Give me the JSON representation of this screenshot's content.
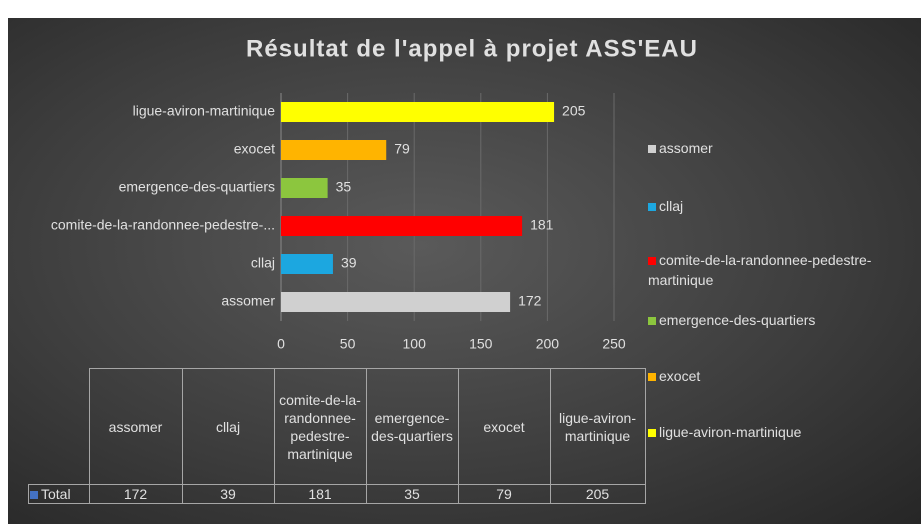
{
  "chart_data": {
    "type": "bar",
    "orientation": "horizontal",
    "title": "Résultat de l'appel à projet ASS'EAU",
    "categories": [
      "assomer",
      "cllaj",
      "comite-de-la-randonnee-pedestre-martinique",
      "emergence-des-quartiers",
      "exocet",
      "ligue-aviron-martinique"
    ],
    "category_labels": [
      "assomer",
      "cllaj",
      "comite-de-la-randonnee-pedestre-...",
      "emergence-des-quartiers",
      "exocet",
      "ligue-aviron-martinique"
    ],
    "values": [
      172,
      39,
      181,
      35,
      79,
      205
    ],
    "colors": [
      "#d0d0d0",
      "#1ca7e0",
      "#ff0000",
      "#8cc63e",
      "#ffb400",
      "#ffff00"
    ],
    "series_name": "Total",
    "series_color": "#4472c4",
    "xlim": [
      0,
      250
    ],
    "xticks": [
      0,
      50,
      100,
      150,
      200,
      250
    ],
    "grid": true,
    "legend": "right",
    "data_table": true
  }
}
